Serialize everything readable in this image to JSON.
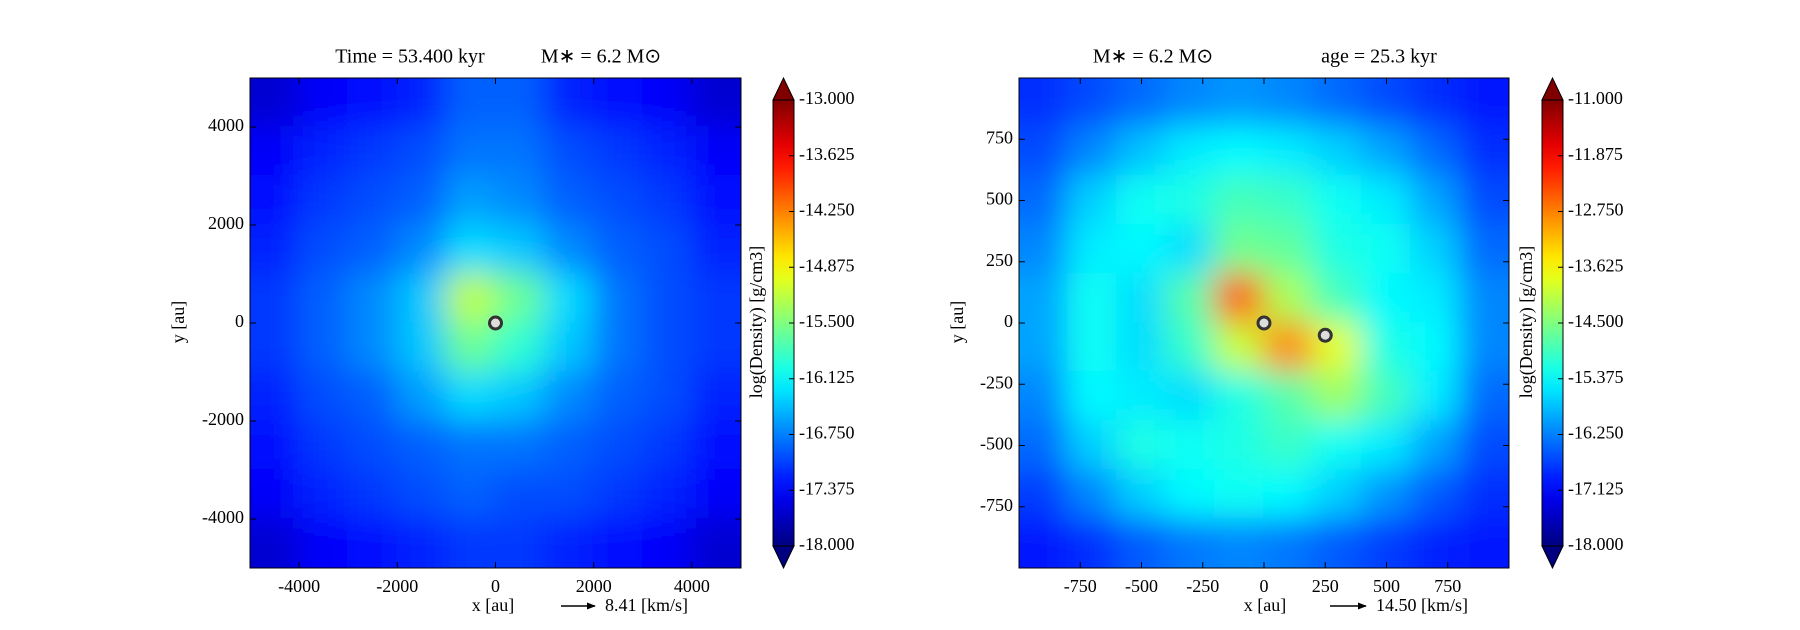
{
  "chart_data": [
    {
      "type": "heatmap",
      "title": [
        "Time = 53.400 kyr",
        "M∗ = 6.2 M⊙"
      ],
      "xlabel": "x [au]",
      "ylabel": "y [au]",
      "colorbar_label": "log(Density) [g/cm3]",
      "quiver_key": {
        "value": 8.41,
        "label": "8.41 [km/s]"
      },
      "xlim": [
        -5000,
        5000
      ],
      "ylim": [
        -5000,
        5000
      ],
      "xticks": [
        -4000,
        -2000,
        0,
        2000,
        4000
      ],
      "yticks": [
        -4000,
        -2000,
        0,
        2000,
        4000
      ],
      "clim": [
        -18,
        -13
      ],
      "cticks": [
        {
          "value": -13,
          "label": "-13.000"
        },
        {
          "value": -13.625,
          "label": "-13.625"
        },
        {
          "value": -14.25,
          "label": "-14.250"
        },
        {
          "value": -14.875,
          "label": "-14.875"
        },
        {
          "value": -15.5,
          "label": "-15.500"
        },
        {
          "value": -16.125,
          "label": "-16.125"
        },
        {
          "value": -16.75,
          "label": "-16.750"
        },
        {
          "value": -17.375,
          "label": "-17.375"
        },
        {
          "value": -18,
          "label": "-18.000"
        }
      ],
      "x": [
        -4500,
        -3500,
        -2500,
        -1500,
        -500,
        500,
        1500,
        2500,
        3500,
        4500
      ],
      "y": [
        4500,
        3500,
        2500,
        1500,
        500,
        -500,
        -1500,
        -2500,
        -3500,
        -4500
      ],
      "z": [
        [
          -17.6,
          -17.4,
          -17.3,
          -17.2,
          -16.9,
          -16.9,
          -17.2,
          -17.3,
          -17.4,
          -17.6
        ],
        [
          -17.4,
          -17.2,
          -17.1,
          -17.0,
          -16.8,
          -16.8,
          -17.0,
          -17.1,
          -17.2,
          -17.4
        ],
        [
          -17.3,
          -17.1,
          -17.0,
          -16.9,
          -16.6,
          -16.7,
          -16.9,
          -17.0,
          -17.1,
          -17.3
        ],
        [
          -17.2,
          -17.0,
          -16.9,
          -16.7,
          -16.3,
          -16.4,
          -16.7,
          -16.9,
          -17.0,
          -17.2
        ],
        [
          -17.1,
          -16.9,
          -16.7,
          -16.4,
          -15.2,
          -15.6,
          -16.3,
          -16.8,
          -17.0,
          -17.1
        ],
        [
          -17.1,
          -16.9,
          -16.7,
          -16.4,
          -15.6,
          -15.9,
          -16.4,
          -16.8,
          -17.0,
          -17.1
        ],
        [
          -17.2,
          -17.0,
          -16.9,
          -16.6,
          -16.3,
          -16.4,
          -16.7,
          -16.9,
          -17.0,
          -17.2
        ],
        [
          -17.3,
          -17.1,
          -17.0,
          -16.9,
          -16.8,
          -16.8,
          -16.9,
          -17.0,
          -17.1,
          -17.3
        ],
        [
          -17.4,
          -17.2,
          -17.1,
          -17.0,
          -16.9,
          -17.0,
          -17.0,
          -17.1,
          -17.2,
          -17.4
        ],
        [
          -17.6,
          -17.4,
          -17.3,
          -17.2,
          -17.1,
          -17.1,
          -17.2,
          -17.3,
          -17.4,
          -17.6
        ]
      ],
      "stars": {
        "x": [
          0
        ],
        "y": [
          0
        ]
      }
    },
    {
      "type": "heatmap",
      "title": [
        "M∗ = 6.2 M⊙",
        "age = 25.3 kyr"
      ],
      "xlabel": "x [au]",
      "ylabel": "y [au]",
      "colorbar_label": "log(Density) [g/cm3]",
      "quiver_key": {
        "value": 14.5,
        "label": "14.50 [km/s]"
      },
      "xlim": [
        -1000,
        1000
      ],
      "ylim": [
        -1000,
        1000
      ],
      "xticks": [
        -750,
        -500,
        -250,
        0,
        250,
        500,
        750
      ],
      "yticks": [
        -750,
        -500,
        -250,
        0,
        250,
        500,
        750
      ],
      "clim": [
        -18,
        -11
      ],
      "cticks": [
        {
          "value": -11,
          "label": "-11.000"
        },
        {
          "value": -11.875,
          "label": "-11.875"
        },
        {
          "value": -12.75,
          "label": "-12.750"
        },
        {
          "value": -13.625,
          "label": "-13.625"
        },
        {
          "value": -14.5,
          "label": "-14.500"
        },
        {
          "value": -15.375,
          "label": "-15.375"
        },
        {
          "value": -16.25,
          "label": "-16.250"
        },
        {
          "value": -17.125,
          "label": "-17.125"
        },
        {
          "value": -18,
          "label": "-18.000"
        }
      ],
      "x": [
        -900,
        -700,
        -500,
        -300,
        -100,
        100,
        300,
        500,
        700,
        900
      ],
      "y": [
        900,
        700,
        500,
        300,
        100,
        -100,
        -300,
        -500,
        -700,
        -900
      ],
      "z": [
        [
          -16.8,
          -16.6,
          -16.4,
          -16.2,
          -16.1,
          -16.2,
          -16.4,
          -16.6,
          -16.8,
          -17.0
        ],
        [
          -16.6,
          -16.2,
          -15.8,
          -15.5,
          -15.4,
          -15.5,
          -15.7,
          -16.0,
          -16.4,
          -16.8
        ],
        [
          -16.4,
          -15.7,
          -15.3,
          -15.2,
          -14.9,
          -15.0,
          -15.3,
          -15.5,
          -16.0,
          -16.6
        ],
        [
          -16.2,
          -15.5,
          -15.4,
          -15.6,
          -14.6,
          -14.7,
          -15.2,
          -15.3,
          -15.7,
          -16.4
        ],
        [
          -16.0,
          -15.3,
          -15.6,
          -14.8,
          -12.5,
          -14.2,
          -14.9,
          -15.4,
          -15.5,
          -16.2
        ],
        [
          -16.0,
          -15.3,
          -15.6,
          -15.0,
          -14.0,
          -12.8,
          -13.8,
          -15.2,
          -15.4,
          -16.2
        ],
        [
          -16.2,
          -15.4,
          -15.5,
          -15.6,
          -15.2,
          -14.8,
          -14.3,
          -14.9,
          -15.5,
          -16.4
        ],
        [
          -16.4,
          -15.7,
          -15.2,
          -15.3,
          -15.2,
          -15.0,
          -15.3,
          -15.5,
          -16.0,
          -16.6
        ],
        [
          -16.7,
          -16.2,
          -15.7,
          -15.4,
          -15.3,
          -15.4,
          -15.7,
          -16.1,
          -16.5,
          -16.8
        ],
        [
          -17.0,
          -16.8,
          -16.5,
          -16.3,
          -16.2,
          -16.3,
          -16.5,
          -16.7,
          -16.9,
          -17.0
        ]
      ],
      "stars": {
        "x": [
          0,
          250
        ],
        "y": [
          0,
          -50
        ]
      }
    }
  ]
}
